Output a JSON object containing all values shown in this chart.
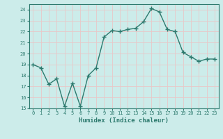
{
  "x": [
    0,
    1,
    2,
    3,
    4,
    5,
    6,
    7,
    8,
    9,
    10,
    11,
    12,
    13,
    14,
    15,
    16,
    17,
    18,
    19,
    20,
    21,
    22,
    23
  ],
  "y": [
    19,
    18.7,
    17.2,
    17.7,
    15.2,
    17.3,
    15.2,
    18.0,
    18.7,
    21.5,
    22.1,
    22.0,
    22.2,
    22.3,
    22.9,
    24.1,
    23.8,
    22.2,
    22.0,
    20.1,
    19.7,
    19.3,
    19.5,
    19.5
  ],
  "xlabel": "Humidex (Indice chaleur)",
  "ylim": [
    15,
    24.5
  ],
  "xlim": [
    -0.5,
    23.5
  ],
  "yticks": [
    15,
    16,
    17,
    18,
    19,
    20,
    21,
    22,
    23,
    24
  ],
  "xticks": [
    0,
    1,
    2,
    3,
    4,
    5,
    6,
    7,
    8,
    9,
    10,
    11,
    12,
    13,
    14,
    15,
    16,
    17,
    18,
    19,
    20,
    21,
    22,
    23
  ],
  "line_color": "#2d7a6e",
  "marker": "+",
  "bg_color": "#ccecea",
  "grid_color": "#e8c8c8",
  "tick_label_color": "#2d7a6e",
  "label_color": "#2d7a6e",
  "marker_size": 4,
  "marker_edge_width": 1.0,
  "line_width": 1.0,
  "tick_fontsize": 5.0,
  "xlabel_fontsize": 6.5,
  "spine_color": "#2d7a6e"
}
